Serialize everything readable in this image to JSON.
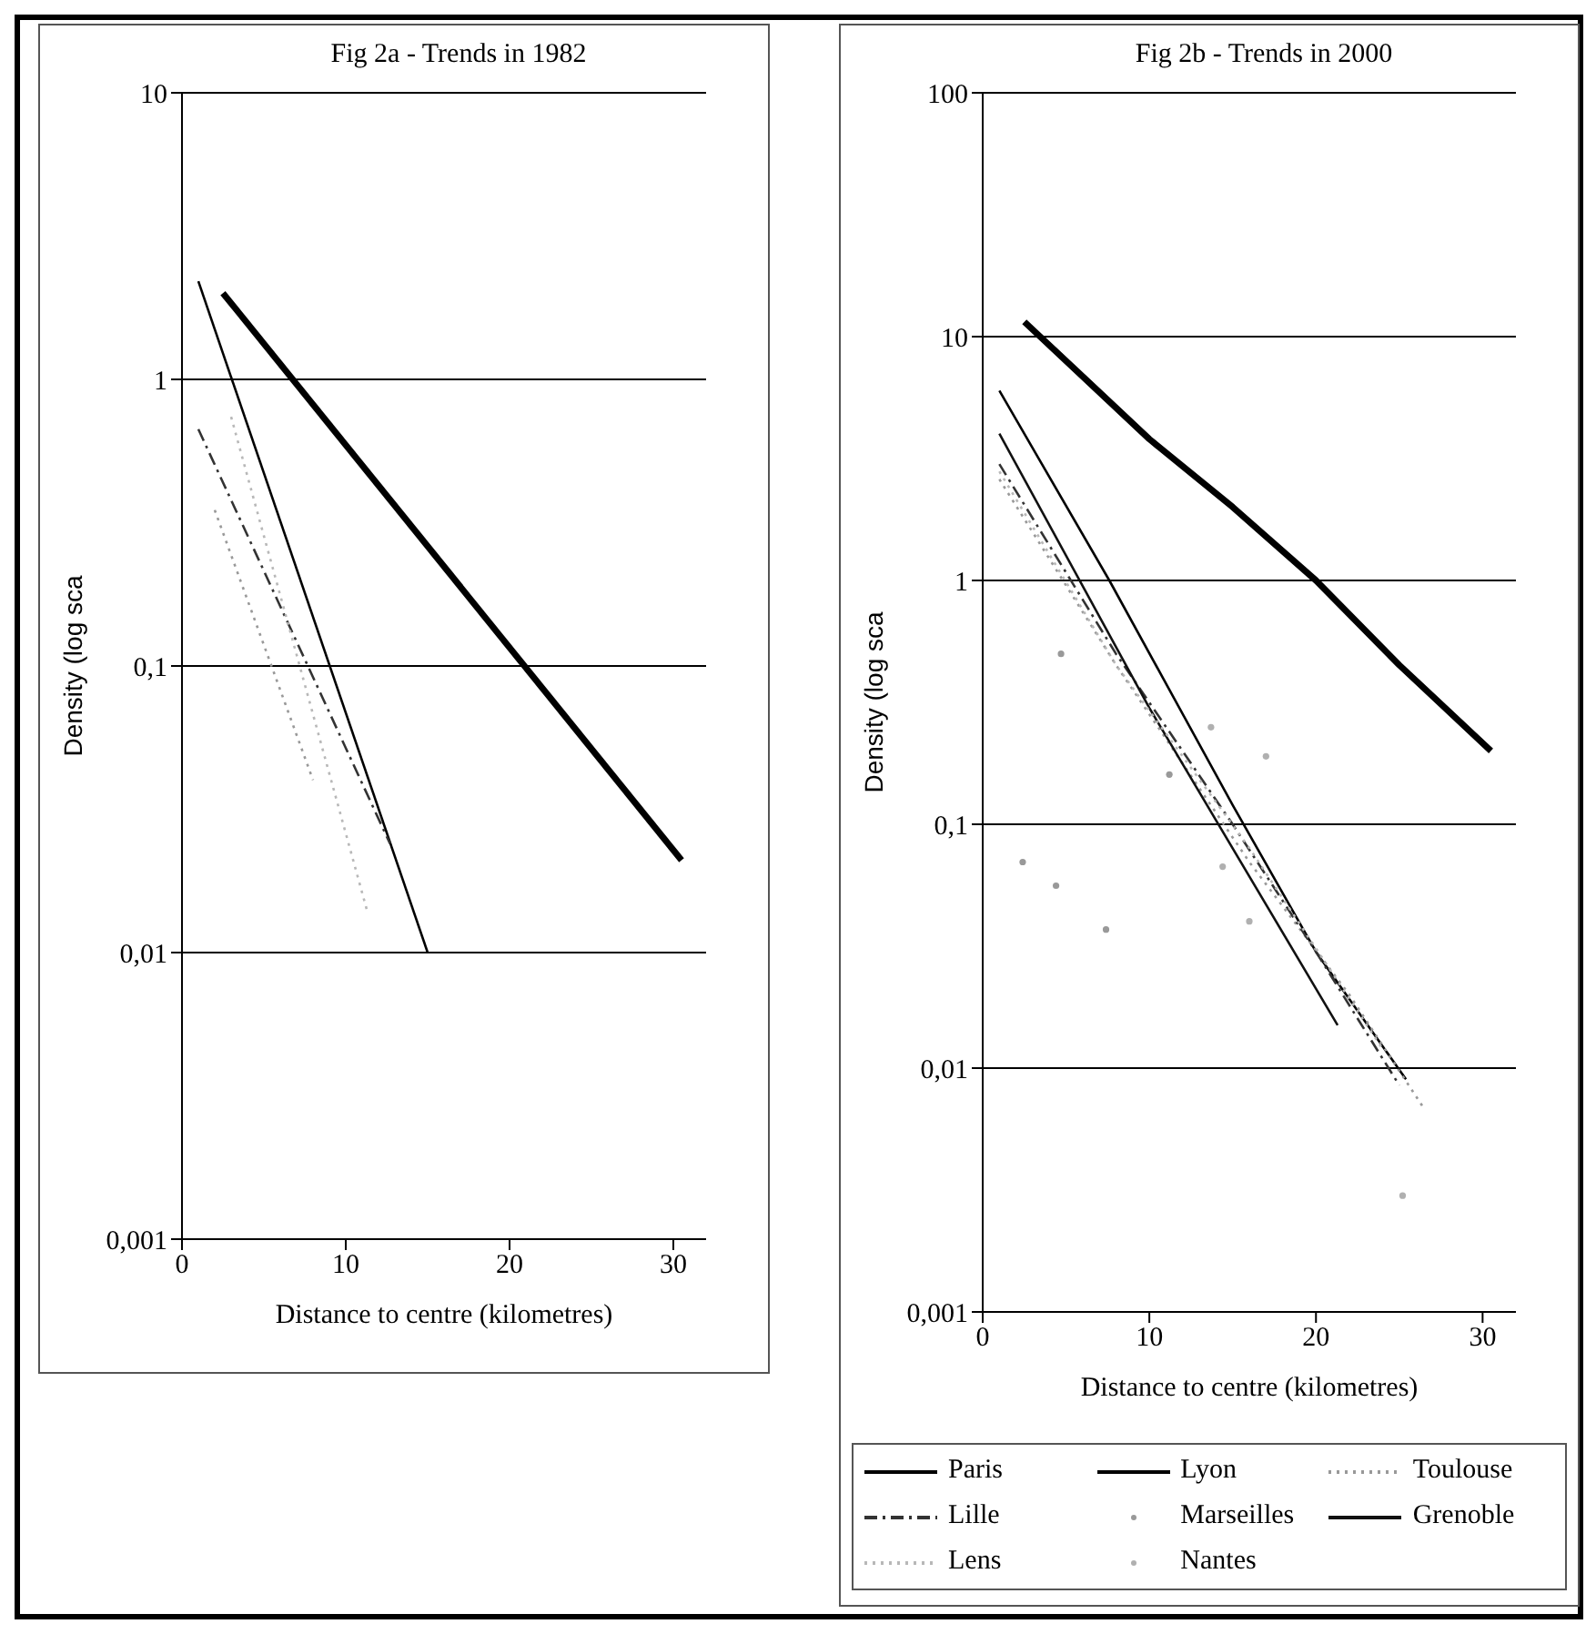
{
  "chart_data": [
    {
      "type": "line",
      "title": "Fig 2a - Trends in 1982",
      "xlabel": "Distance to centre (kilometres)",
      "ylabel": "Density (log sca",
      "log": "y",
      "grid": "y",
      "legend": false,
      "xlim": [
        0,
        32
      ],
      "xticks": [
        0,
        10,
        20,
        30
      ],
      "ylim": [
        0.001,
        10
      ],
      "yticks": [
        {
          "value": 0.001,
          "label": "0,001"
        },
        {
          "value": 0.01,
          "label": "0,01"
        },
        {
          "value": 0.1,
          "label": "0,1"
        },
        1,
        10
      ],
      "series": [
        {
          "color": "#000000",
          "line_style": "solid",
          "x": [
            2.5,
            30.5
          ],
          "values": [
            2,
            0.021
          ]
        },
        {
          "color": "#000000",
          "line_style": "solid",
          "x": [
            1,
            15
          ],
          "values": [
            2.2,
            0.01
          ]
        },
        {
          "color": "#333333",
          "line_style": "dashed",
          "x": [
            1,
            12.7
          ],
          "values": [
            0.67,
            0.024
          ]
        },
        {
          "color": "#b8b8b8",
          "line_style": "dotted",
          "x": [
            3,
            11.3
          ],
          "values": [
            0.74,
            0.014
          ]
        },
        {
          "color": "#999999",
          "line_style": "dotted",
          "x": [
            2,
            8
          ],
          "values": [
            0.35,
            0.04
          ]
        }
      ]
    },
    {
      "type": "line",
      "title": "Fig 2b - Trends in 2000",
      "xlabel": "Distance to centre (kilometres)",
      "ylabel": "Density (log sca",
      "log": "y",
      "grid": "y",
      "legend": "bottom",
      "xlim": [
        0,
        32
      ],
      "xticks": [
        0,
        10,
        20,
        30
      ],
      "ylim": [
        0.001,
        100
      ],
      "yticks": [
        {
          "value": 0.001,
          "label": "0,001"
        },
        {
          "value": 0.01,
          "label": "0,01"
        },
        {
          "value": 0.1,
          "label": "0,1"
        },
        1,
        10,
        100
      ],
      "series": [
        {
          "name": "Paris",
          "color": "#000000",
          "line_style": "solid",
          "x": [
            2.5,
            7.5,
            10,
            15,
            20,
            25,
            30.5
          ],
          "values": [
            11.5,
            5.5,
            3.8,
            2,
            1,
            0.45,
            0.2
          ]
        },
        {
          "name": "Lyon",
          "color": "#000000",
          "line_style": "solid",
          "x": [
            1,
            7.6,
            15,
            20,
            25.4
          ],
          "values": [
            6,
            1,
            0.12,
            0.03,
            0.009
          ]
        },
        {
          "name": "Toulouse",
          "color": "#999999",
          "line_style": "dotted",
          "x": [
            1,
            8,
            16,
            22,
            26.5
          ],
          "values": [
            2.6,
            0.45,
            0.07,
            0.02,
            0.0068
          ]
        },
        {
          "name": "Lille",
          "color": "#333333",
          "line_style": "dashed",
          "x": [
            1,
            8,
            15,
            20,
            25
          ],
          "values": [
            3,
            0.5,
            0.1,
            0.03,
            0.0085
          ]
        },
        {
          "name": "Marseilles",
          "type": "scatter",
          "marker": "circle",
          "color": "#999999",
          "x": [
            4.7,
            2.4,
            4.4,
            7.4,
            11.2
          ],
          "values": [
            0.5,
            0.07,
            0.056,
            0.037,
            0.16
          ]
        },
        {
          "name": "Grenoble",
          "color": "#111111",
          "line_style": "solid",
          "x": [
            1,
            10,
            21.3
          ],
          "values": [
            4,
            0.3,
            0.015
          ]
        },
        {
          "name": "Lens",
          "color": "#b8b8b8",
          "line_style": "dotted",
          "x": [
            1,
            8,
            16,
            24
          ],
          "values": [
            2.8,
            0.45,
            0.08,
            0.012
          ]
        },
        {
          "name": "Nantes",
          "type": "scatter",
          "marker": "circle",
          "color": "#b0b0b0",
          "x": [
            13.7,
            17,
            14.4,
            16,
            25.2
          ],
          "values": [
            0.25,
            0.19,
            0.067,
            0.04,
            0.003
          ]
        }
      ]
    }
  ]
}
